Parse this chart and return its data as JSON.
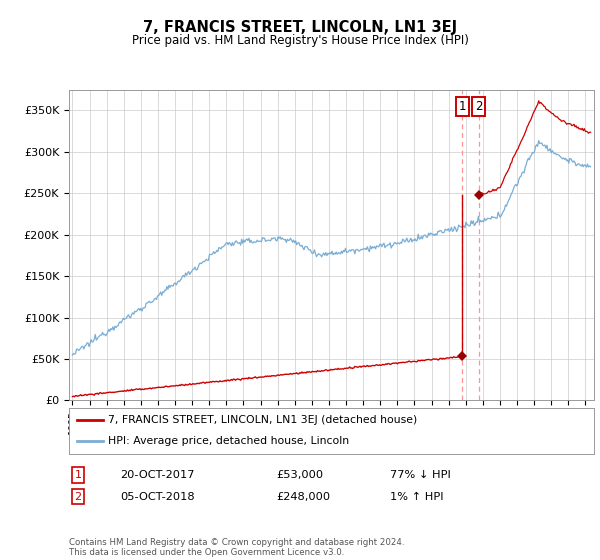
{
  "title": "7, FRANCIS STREET, LINCOLN, LN1 3EJ",
  "subtitle": "Price paid vs. HM Land Registry's House Price Index (HPI)",
  "ylabel_ticks": [
    "£0",
    "£50K",
    "£100K",
    "£150K",
    "£200K",
    "£250K",
    "£300K",
    "£350K"
  ],
  "ytick_values": [
    0,
    50000,
    100000,
    150000,
    200000,
    250000,
    300000,
    350000
  ],
  "ylim": [
    0,
    375000
  ],
  "xlim_start": 1994.8,
  "xlim_end": 2025.5,
  "hpi_color": "#7aadd4",
  "price_color": "#cc0000",
  "marker_color": "#990000",
  "dashed_line_color": "#ff8888",
  "annotation_box_color": "#cc0000",
  "sale1_year": 2017.8,
  "sale1_price": 53000,
  "sale2_year": 2018.75,
  "sale2_price": 248000,
  "legend_line1": "7, FRANCIS STREET, LINCOLN, LN1 3EJ (detached house)",
  "legend_line2": "HPI: Average price, detached house, Lincoln",
  "table_row1": [
    "1",
    "20-OCT-2017",
    "£53,000",
    "77% ↓ HPI"
  ],
  "table_row2": [
    "2",
    "05-OCT-2018",
    "£248,000",
    "1% ↑ HPI"
  ],
  "footer": "Contains HM Land Registry data © Crown copyright and database right 2024.\nThis data is licensed under the Open Government Licence v3.0.",
  "background_color": "#ffffff",
  "grid_color": "#cccccc"
}
